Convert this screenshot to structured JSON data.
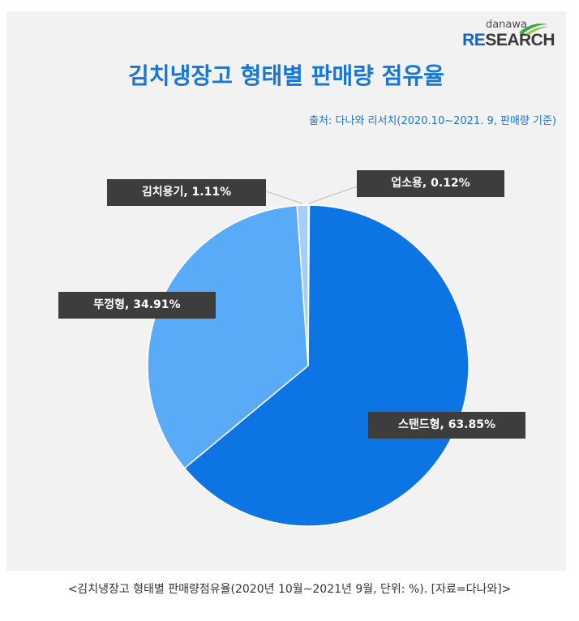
{
  "logo": {
    "top": "danawa",
    "main_re": "RE",
    "main_rest": "SEARCH"
  },
  "source": "출처: 다나와 리서치(2020.10~2021. 9, 판매량 기준)",
  "caption": "<김치냉장고 형태별 판매량점유율(2020년 10월~2021년 9월, 단위: %). [자료=다나와]>",
  "chart_data": {
    "type": "pie",
    "title": "김치냉장고 형태별 판매량 점유율",
    "categories": [
      "업소용",
      "스탠드형",
      "뚜껑형",
      "김치용기"
    ],
    "values": [
      0.12,
      63.85,
      34.91,
      1.11
    ],
    "unit": "%",
    "colors": [
      "#bcd8f5",
      "#0d74e3",
      "#5aabf7",
      "#a6cdf6"
    ],
    "labels": [
      "업소용, 0.12%",
      "스탠드형, 63.85%",
      "뚜껑형, 34.91%",
      "김치용기, 1.11%"
    ],
    "legend": "none"
  }
}
